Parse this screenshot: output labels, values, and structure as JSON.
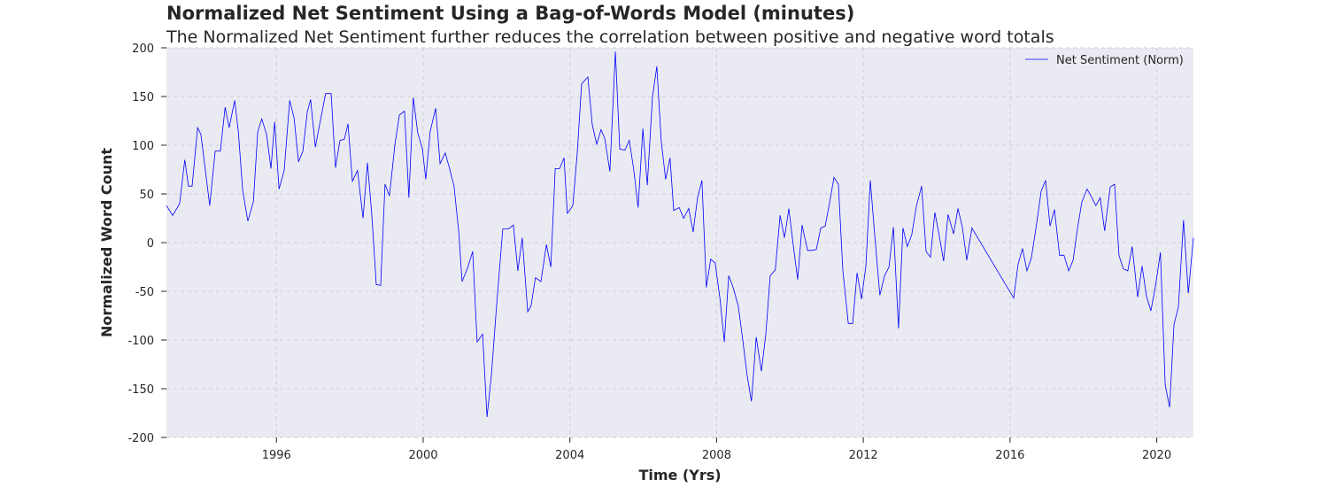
{
  "chart_data": {
    "type": "line",
    "title": "Normalized Net Sentiment Using a Bag-of-Words Model (minutes)",
    "subtitle": "The Normalized Net Sentiment further reduces the correlation between positive and negative word totals",
    "x_label": "Time (Yrs)",
    "y_label": "Normalized Word Count",
    "x": [
      1993.0,
      1993.17,
      1993.36,
      1993.5,
      1993.6,
      1993.7,
      1993.85,
      1993.94,
      1994.18,
      1994.33,
      1994.47,
      1994.6,
      1994.71,
      1994.86,
      1994.96,
      1995.08,
      1995.22,
      1995.37,
      1995.49,
      1995.6,
      1995.73,
      1995.85,
      1995.95,
      1996.07,
      1996.21,
      1996.36,
      1996.48,
      1996.6,
      1996.72,
      1996.84,
      1996.93,
      1997.06,
      1997.18,
      1997.34,
      1997.49,
      1997.61,
      1997.73,
      1997.85,
      1997.95,
      1998.07,
      1998.21,
      1998.36,
      1998.48,
      1998.6,
      1998.72,
      1998.84,
      1998.96,
      1999.08,
      1999.23,
      1999.35,
      1999.49,
      1999.61,
      1999.73,
      1999.85,
      1999.98,
      2000.07,
      2000.19,
      2000.34,
      2000.46,
      2000.6,
      2000.72,
      2000.84,
      2000.97,
      2001.06,
      2001.21,
      2001.35,
      2001.47,
      2001.62,
      2001.74,
      2001.86,
      2002.0,
      2002.17,
      2002.32,
      2002.46,
      2002.58,
      2002.7,
      2002.85,
      2002.94,
      2003.06,
      2003.21,
      2003.36,
      2003.48,
      2003.6,
      2003.72,
      2003.84,
      2003.93,
      2004.08,
      2004.2,
      2004.32,
      2004.49,
      2004.61,
      2004.73,
      2004.85,
      2004.95,
      2005.09,
      2005.24,
      2005.36,
      2005.5,
      2005.62,
      2005.74,
      2005.86,
      2005.99,
      2006.11,
      2006.25,
      2006.37,
      2006.49,
      2006.61,
      2006.73,
      2006.83,
      2006.98,
      2007.1,
      2007.24,
      2007.36,
      2007.48,
      2007.6,
      2007.72,
      2007.84,
      2007.96,
      2008.09,
      2008.21,
      2008.33,
      2008.45,
      2008.59,
      2008.71,
      2008.83,
      2008.95,
      2009.08,
      2009.22,
      2009.34,
      2009.46,
      2009.6,
      2009.73,
      2009.85,
      2009.97,
      2010.09,
      2010.21,
      2010.33,
      2010.48,
      2010.6,
      2010.72,
      2010.84,
      2010.96,
      2011.08,
      2011.2,
      2011.32,
      2011.44,
      2011.59,
      2011.71,
      2011.83,
      2011.95,
      2012.07,
      2012.19,
      2012.31,
      2012.45,
      2012.58,
      2012.7,
      2012.82,
      2012.96,
      2013.08,
      2013.2,
      2013.32,
      2013.45,
      2013.59,
      2013.71,
      2013.83,
      2013.95,
      2014.07,
      2014.19,
      2014.31,
      2014.46,
      2014.58,
      2014.7,
      2014.82,
      2014.96,
      2016.1,
      2016.22,
      2016.34,
      2016.46,
      2016.58,
      2016.7,
      2016.85,
      2016.97,
      2017.09,
      2017.21,
      2017.35,
      2017.47,
      2017.6,
      2017.72,
      2017.84,
      2017.96,
      2018.1,
      2018.22,
      2018.34,
      2018.46,
      2018.58,
      2018.73,
      2018.85,
      2018.97,
      2019.09,
      2019.21,
      2019.33,
      2019.48,
      2019.6,
      2019.72,
      2019.84,
      2019.96,
      2020.1,
      2020.23,
      2020.35,
      2020.47,
      2020.59,
      2020.73,
      2020.86,
      2021.0
    ],
    "series": [
      {
        "name": "Net Sentiment (Norm)",
        "color": "#0000ff",
        "values": [
          38,
          28,
          40,
          85,
          58,
          58,
          118,
          111,
          38,
          94,
          94,
          139,
          118,
          146,
          114,
          53,
          22,
          42,
          114,
          127,
          111,
          76,
          124,
          55,
          74,
          146,
          128,
          83,
          94,
          134,
          147,
          98,
          122,
          153,
          153,
          77,
          105,
          106,
          122,
          63,
          74,
          25,
          82,
          28,
          -43,
          -44,
          60,
          48,
          101,
          131,
          135,
          46,
          149,
          113,
          96,
          65,
          114,
          138,
          81,
          92,
          76,
          58,
          11,
          -40,
          -26,
          -9,
          -102,
          -94,
          -179,
          -136,
          -65,
          14,
          14,
          18,
          -29,
          5,
          -71,
          -65,
          -36,
          -40,
          -2,
          -25,
          76,
          76,
          87,
          30,
          38,
          92,
          163,
          170,
          121,
          101,
          116,
          107,
          73,
          196,
          96,
          95,
          105,
          75,
          36,
          117,
          59,
          149,
          181,
          104,
          65,
          87,
          33,
          36,
          25,
          35,
          11,
          46,
          64,
          -46,
          -17,
          -21,
          -57,
          -102,
          -34,
          -46,
          -65,
          -99,
          -136,
          -163,
          -97,
          -132,
          -95,
          -34,
          -28,
          28,
          5,
          35,
          -3,
          -38,
          18,
          -8,
          -8,
          -7,
          15,
          17,
          41,
          67,
          60,
          -28,
          -83,
          -83,
          -31,
          -58,
          -24,
          64,
          8,
          -54,
          -34,
          -25,
          16,
          -88,
          15,
          -4,
          8,
          38,
          58,
          -9,
          -15,
          31,
          7,
          -19,
          29,
          9,
          35,
          16,
          -18,
          15,
          -57,
          -22,
          -6,
          -29,
          -16,
          13,
          53,
          64,
          17,
          34,
          -13,
          -13,
          -29,
          -18,
          15,
          42,
          55,
          47,
          38,
          46,
          12,
          57,
          60,
          -13,
          -27,
          -29,
          -4,
          -56,
          -24,
          -55,
          -70,
          -46,
          -10,
          -146,
          -169,
          -84,
          -66,
          23,
          -52,
          5
        ]
      }
    ],
    "xlim": [
      1993,
      2021
    ],
    "xticks": [
      1996,
      2000,
      2004,
      2008,
      2012,
      2016,
      2020
    ],
    "ylim": [
      -200,
      200
    ],
    "yticks": [
      -200,
      -150,
      -100,
      -50,
      0,
      50,
      100,
      150,
      200
    ],
    "grid": true,
    "legend": "upper right"
  }
}
